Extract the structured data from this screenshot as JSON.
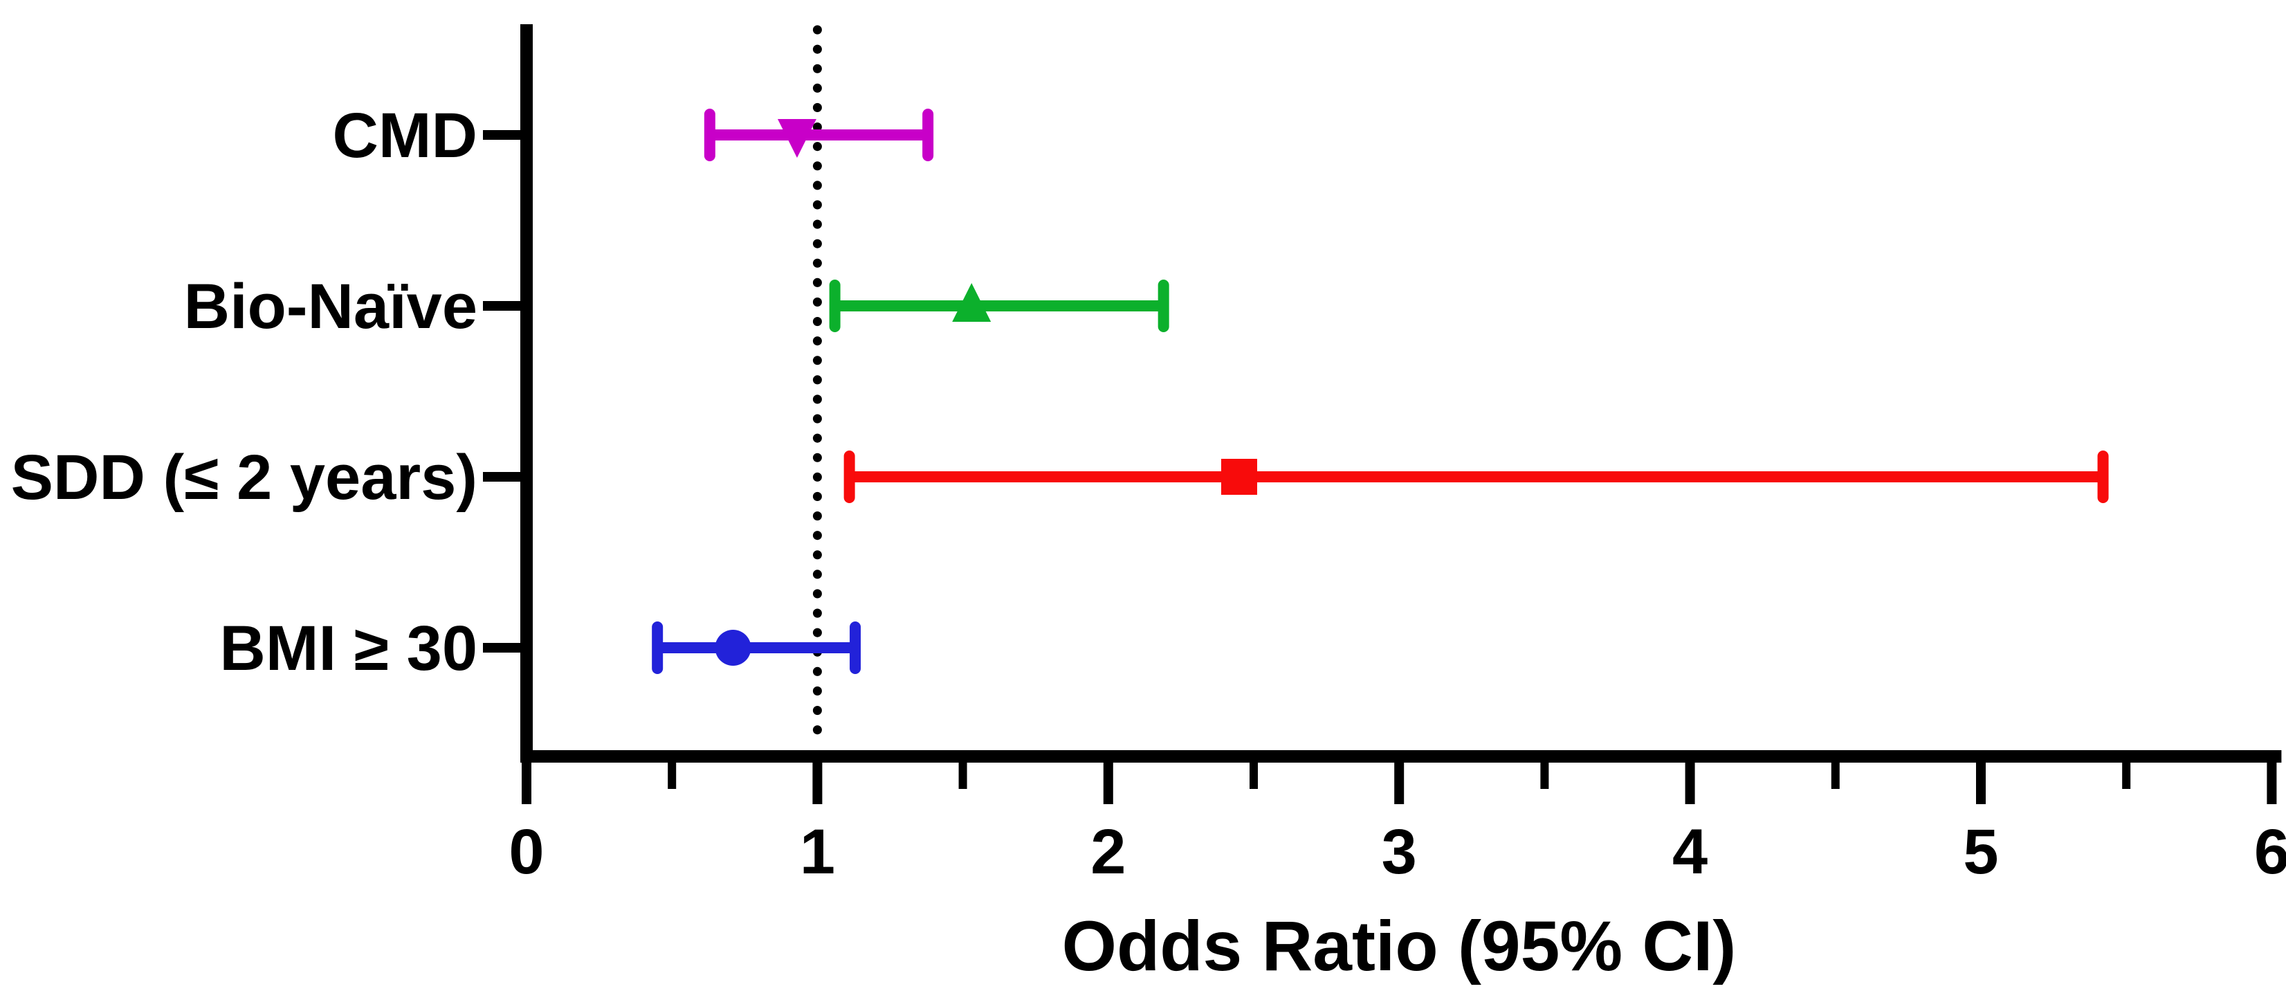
{
  "chart_data": {
    "type": "forest_plot_scatter",
    "title": "",
    "xlabel": "Odds Ratio (95% CI)",
    "xlim": [
      0,
      6
    ],
    "x_major_ticks": [
      0,
      1,
      2,
      3,
      4,
      5,
      6
    ],
    "x_minor_tick_step": 0.5,
    "reference_line": {
      "x": 1.0,
      "style": "dotted",
      "color": "#000000"
    },
    "grid": false,
    "legend": "none",
    "background": "#FFFFFF",
    "axis_color": "#000000",
    "rows": [
      {
        "label": "CMD",
        "or": 0.93,
        "ci_low": 0.63,
        "ci_high": 1.38,
        "marker": "triangle-down",
        "color": "#C800C8"
      },
      {
        "label": "Bio-Naïve",
        "or": 1.53,
        "ci_low": 1.06,
        "ci_high": 2.19,
        "marker": "triangle-up",
        "color": "#0CB02C"
      },
      {
        "label": "SDD (≤ 2 years)",
        "or": 2.45,
        "ci_low": 1.11,
        "ci_high": 5.42,
        "marker": "square",
        "color": "#F80B0B"
      },
      {
        "label": "BMI ≥ 30",
        "or": 0.71,
        "ci_low": 0.45,
        "ci_high": 1.13,
        "marker": "circle",
        "color": "#2222D9"
      }
    ]
  }
}
